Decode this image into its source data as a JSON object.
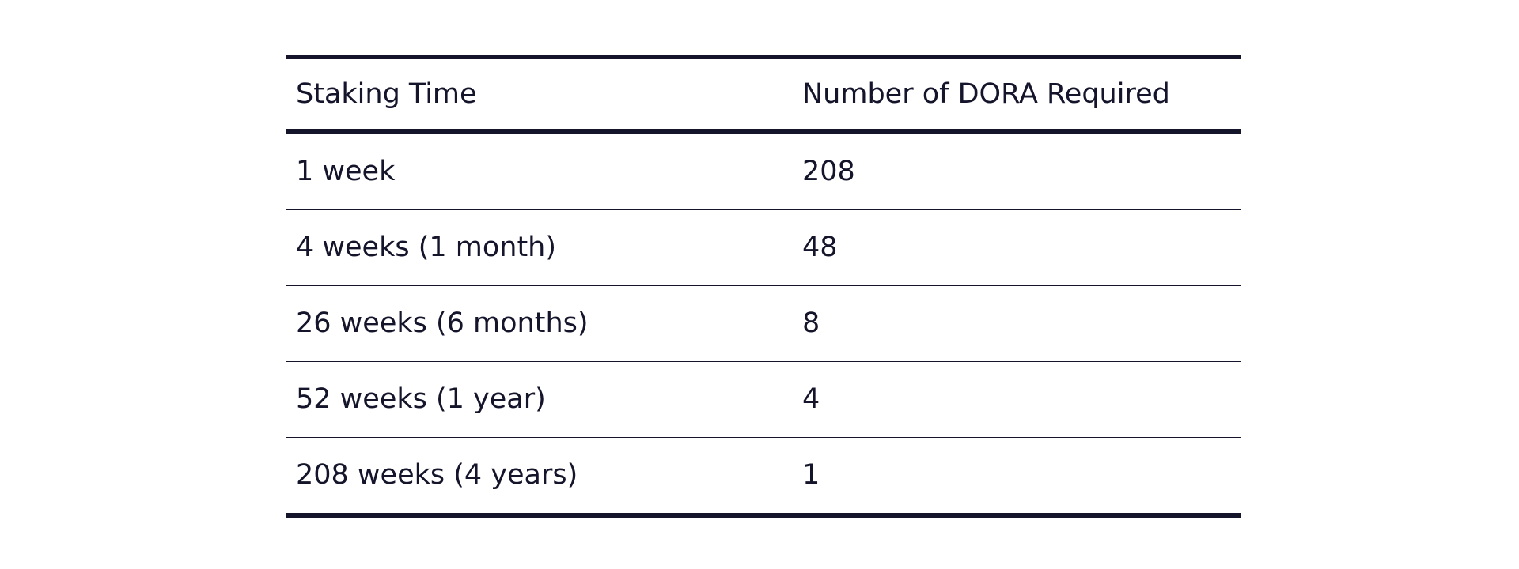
{
  "table": {
    "headers": [
      "Staking Time",
      "Number of DORA Required"
    ],
    "rows": [
      [
        "1 week",
        "208"
      ],
      [
        "4 weeks (1 month)",
        "48"
      ],
      [
        "26 weeks (6 months)",
        "8"
      ],
      [
        "52 weeks (1 year)",
        "4"
      ],
      [
        "208 weeks (4 years)",
        "1"
      ]
    ]
  },
  "colors": {
    "text": "#14142b",
    "rule": "#14142b",
    "background": "#ffffff"
  }
}
